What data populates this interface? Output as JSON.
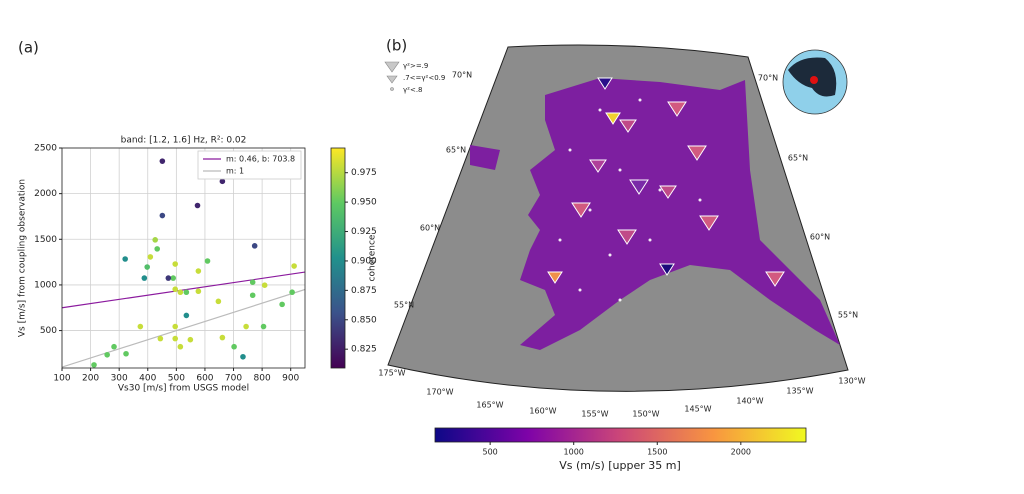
{
  "chart_data": [
    {
      "type": "scatter",
      "panel_label": "(a)",
      "title": "band: [1.2, 1.6] Hz, R²: 0.02",
      "xlabel": "Vs30 [m/s] from USGS model",
      "ylabel": "Vs [m/s] from coupling observation",
      "x": [
        451,
        661,
        451,
        574,
        774,
        321,
        426,
        433,
        409,
        398,
        496,
        609,
        489,
        388,
        472,
        577,
        496,
        514,
        535,
        577,
        767,
        767,
        809,
        870,
        905,
        912,
        647,
        805,
        744,
        535,
        374,
        496,
        496,
        514,
        549,
        444,
        661,
        702,
        733,
        282,
        324,
        258,
        212
      ],
      "values": [
        2356,
        2135,
        1760,
        1870,
        1428,
        1284,
        1494,
        1395,
        1307,
        1196,
        1229,
        1262,
        1075,
        1075,
        1075,
        1152,
        953,
        920,
        920,
        931,
        1030,
        887,
        997,
        787,
        920,
        1207,
        820,
        544,
        544,
        666,
        544,
        544,
        412,
        323,
        400,
        412,
        423,
        323,
        213,
        323,
        246,
        235,
        124
      ],
      "coherence": [
        0.83,
        0.83,
        0.85,
        0.83,
        0.85,
        0.9,
        0.97,
        0.95,
        0.98,
        0.94,
        0.98,
        0.95,
        0.95,
        0.9,
        0.84,
        0.98,
        0.98,
        0.98,
        0.95,
        0.98,
        0.95,
        0.95,
        0.98,
        0.95,
        0.95,
        0.98,
        0.98,
        0.95,
        0.98,
        0.9,
        0.98,
        0.98,
        0.98,
        0.98,
        0.98,
        0.98,
        0.98,
        0.95,
        0.9,
        0.95,
        0.95,
        0.95,
        0.95
      ],
      "xlim": [
        100,
        950
      ],
      "ylim": [
        90,
        2500
      ],
      "xticks": [
        100,
        200,
        300,
        400,
        500,
        600,
        700,
        800,
        900
      ],
      "yticks": [
        500,
        1000,
        1500,
        2000,
        2500
      ],
      "grid": true,
      "lines": [
        {
          "label": "m: 0.46, b: 703.8",
          "slope": 0.46,
          "intercept": 703.8,
          "color": "#8b1a9e"
        },
        {
          "label": "m: 1",
          "slope": 1,
          "intercept": 0,
          "color": "#bbbbbb"
        }
      ],
      "colorbar": {
        "label": "coherence",
        "colormap": "viridis",
        "lim": [
          0.809,
          0.996
        ],
        "ticks": [
          0.825,
          {
            "value": 0.85,
            "label": "0.850"
          },
          0.875,
          {
            "value": 0.9,
            "label": "0.900"
          },
          0.925,
          {
            "value": 0.95,
            "label": "0.950"
          },
          0.975
        ]
      }
    },
    {
      "type": "map",
      "panel_label": "(b)",
      "legend": [
        "γ²>=.9",
        ".7<=γ²<0.9",
        "γ²<.8"
      ],
      "lat_labels_left": [
        "70°N",
        "65°N",
        "60°N",
        "55°N"
      ],
      "lat_labels_right": [
        "70°N",
        "65°N",
        "60°N",
        "55°N"
      ],
      "lon_labels": [
        "175°W",
        "170°W",
        "165°W",
        "160°W",
        "155°W",
        "150°W",
        "145°W",
        "140°W",
        "135°W",
        "130°W"
      ],
      "colorbar": {
        "label": "Vs (m/s) [upper 35 m]",
        "colormap": "plasma",
        "lim": [
          170,
          2390
        ],
        "ticks": [
          500,
          1000,
          1500,
          2000
        ]
      }
    }
  ]
}
